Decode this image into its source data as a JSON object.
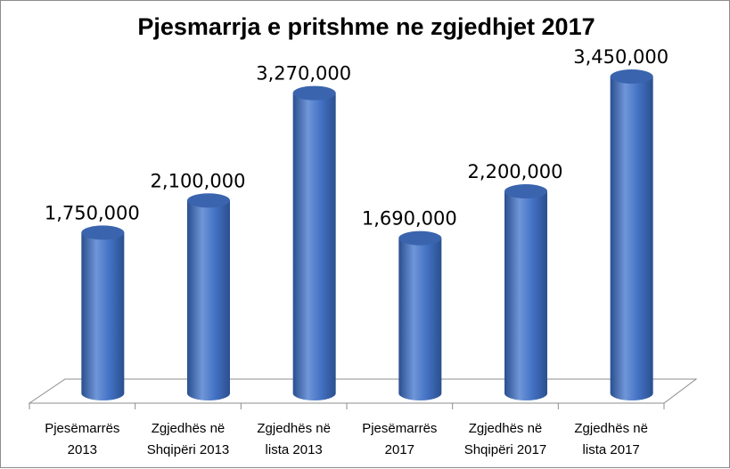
{
  "chart_data": {
    "type": "bar",
    "style": "3d-cylinder",
    "title": "Pjesmarrja e pritshme ne zgjedhjet 2017",
    "categories": [
      [
        "Pjesëmarrës",
        "2013"
      ],
      [
        "Zgjedhës në",
        "Shqipëri 2013"
      ],
      [
        "Zgjedhës në",
        "lista 2013"
      ],
      [
        "Pjesëmarrës",
        "2017"
      ],
      [
        "Zgjedhës në",
        "Shqipëri 2017"
      ],
      [
        "Zgjedhës në",
        "lista 2017"
      ]
    ],
    "values": [
      1750000,
      2100000,
      3270000,
      1690000,
      2200000,
      3450000
    ],
    "value_labels": [
      "1,750,000",
      "2,100,000",
      "3,270,000",
      "1,690,000",
      "2,200,000",
      "3,450,000"
    ],
    "ylim": [
      0,
      4000000
    ],
    "grid": false,
    "legend": "none",
    "xlabel": "",
    "ylabel": "",
    "colors": {
      "bar_fill": "#4472c4",
      "bar_dark": "#2a4f8f",
      "bar_light": "#6f96d8",
      "bar_top": "#3a64ad",
      "floor_line": "#8c8c8c"
    }
  }
}
